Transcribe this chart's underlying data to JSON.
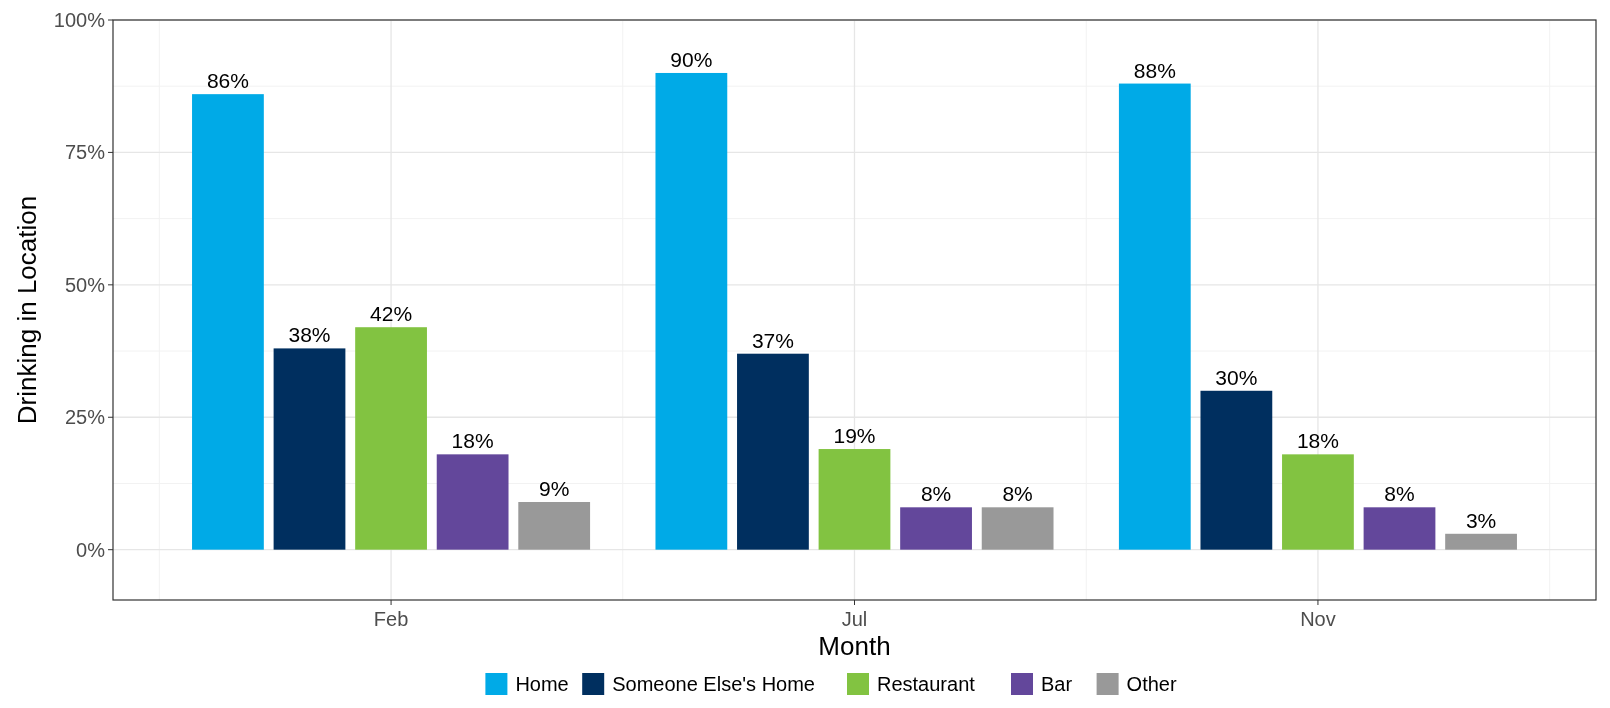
{
  "chart_data": {
    "type": "bar",
    "xlabel": "Month",
    "ylabel": "Drinking in Location",
    "categories": [
      "Feb",
      "Jul",
      "Nov"
    ],
    "series": [
      {
        "name": "Home",
        "color": "#00aae7",
        "values": [
          86,
          90,
          88
        ],
        "value_labels": [
          "86%",
          "90%",
          "88%"
        ]
      },
      {
        "name": "Someone Else's Home",
        "color": "#002f5f",
        "values": [
          38,
          37,
          30
        ],
        "value_labels": [
          "38%",
          "37%",
          "30%"
        ]
      },
      {
        "name": "Restaurant",
        "color": "#82c341",
        "values": [
          42,
          19,
          18
        ],
        "value_labels": [
          "42%",
          "19%",
          "18%"
        ]
      },
      {
        "name": "Bar",
        "color": "#63479b",
        "values": [
          18,
          8,
          8
        ],
        "value_labels": [
          "18%",
          "8%",
          "8%"
        ]
      },
      {
        "name": "Other",
        "color": "#999999",
        "values": [
          9,
          8,
          3
        ],
        "value_labels": [
          "9%",
          "8%",
          "3%"
        ]
      }
    ],
    "ylim": [
      -9.5,
      100
    ],
    "yticks": [
      {
        "value": 0,
        "label": "0%"
      },
      {
        "value": 25,
        "label": "25%"
      },
      {
        "value": 50,
        "label": "50%"
      },
      {
        "value": 75,
        "label": "75%"
      },
      {
        "value": 100,
        "label": "100%"
      }
    ],
    "grid": true,
    "legend": "bottom"
  }
}
